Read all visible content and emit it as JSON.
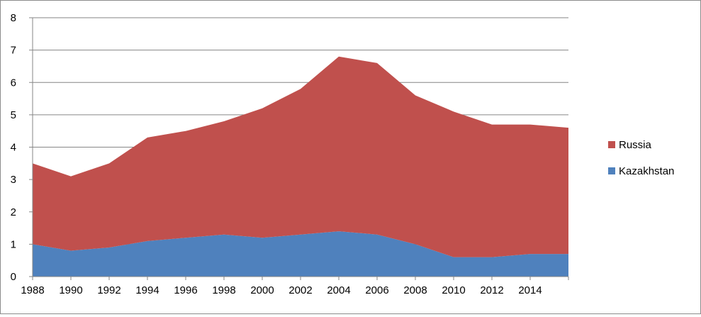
{
  "chart_data": {
    "type": "area",
    "stacked": true,
    "x": [
      1988,
      1990,
      1992,
      1994,
      1996,
      1998,
      2000,
      2002,
      2004,
      2006,
      2008,
      2010,
      2012,
      2014,
      2016
    ],
    "x_tick_labels": [
      "1988",
      "1990",
      "1992",
      "1994",
      "1996",
      "1998",
      "2000",
      "2002",
      "2004",
      "2006",
      "2008",
      "2010",
      "2012",
      "2014"
    ],
    "ylim": [
      0,
      8
    ],
    "y_tick_labels": [
      "0",
      "1",
      "2",
      "3",
      "4",
      "5",
      "6",
      "7",
      "8"
    ],
    "grid": true,
    "legend_position": "right",
    "series": [
      {
        "name": "Kazakhstan",
        "color": "#4f81bd",
        "values": [
          1.0,
          0.8,
          0.9,
          1.1,
          1.2,
          1.3,
          1.2,
          1.3,
          1.4,
          1.3,
          1.0,
          0.6,
          0.6,
          0.7,
          0.7
        ]
      },
      {
        "name": "Russia",
        "color": "#c0504d",
        "values": [
          2.5,
          2.3,
          2.6,
          3.2,
          3.3,
          3.5,
          4.0,
          4.5,
          5.4,
          5.3,
          4.6,
          4.5,
          4.1,
          4.0,
          3.9
        ]
      }
    ],
    "legend_order": [
      "Russia",
      "Kazakhstan"
    ]
  }
}
